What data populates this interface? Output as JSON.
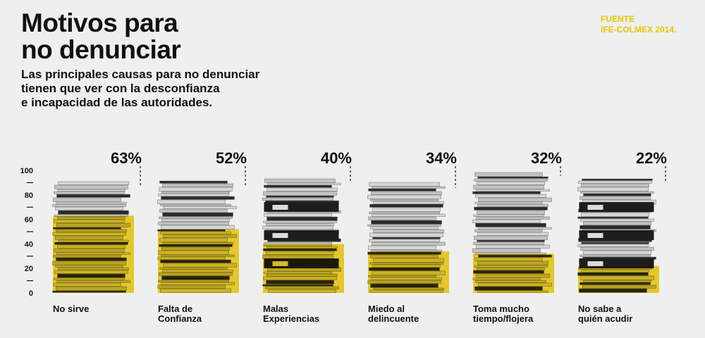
{
  "header": {
    "title_line1": "Motivos para",
    "title_line2": "no denunciar",
    "subtitle_line1": "Las principales causas para no denunciar",
    "subtitle_line2": "tienen que ver con la desconfianza",
    "subtitle_line3": "e incapacidad de las autoridades."
  },
  "source": {
    "label": "FUENTE",
    "value": "IFE-COLMEX 2014."
  },
  "colors": {
    "accent": "#f2cd00",
    "background": "#efefef",
    "paper_light": "#d6d6d6",
    "paper_dark": "#2a2a2a"
  },
  "chart_data": {
    "type": "bar",
    "categories": [
      [
        "No sirve"
      ],
      [
        "Falta de",
        "Confianza"
      ],
      [
        "Malas",
        "Experiencias"
      ],
      [
        "Miedo al",
        "delincuente"
      ],
      [
        "Toma mucho",
        "tiempo/flojera"
      ],
      [
        "No sabe a",
        "quién acudir"
      ]
    ],
    "values": [
      63,
      52,
      40,
      34,
      32,
      22
    ],
    "value_labels": [
      "63%",
      "52%",
      "40%",
      "34%",
      "32%",
      "22%"
    ],
    "stack_heights": [
      90,
      90,
      92,
      88,
      98,
      92
    ],
    "yticks": [
      0,
      20,
      40,
      60,
      80,
      100
    ],
    "ylim": [
      0,
      100
    ]
  }
}
